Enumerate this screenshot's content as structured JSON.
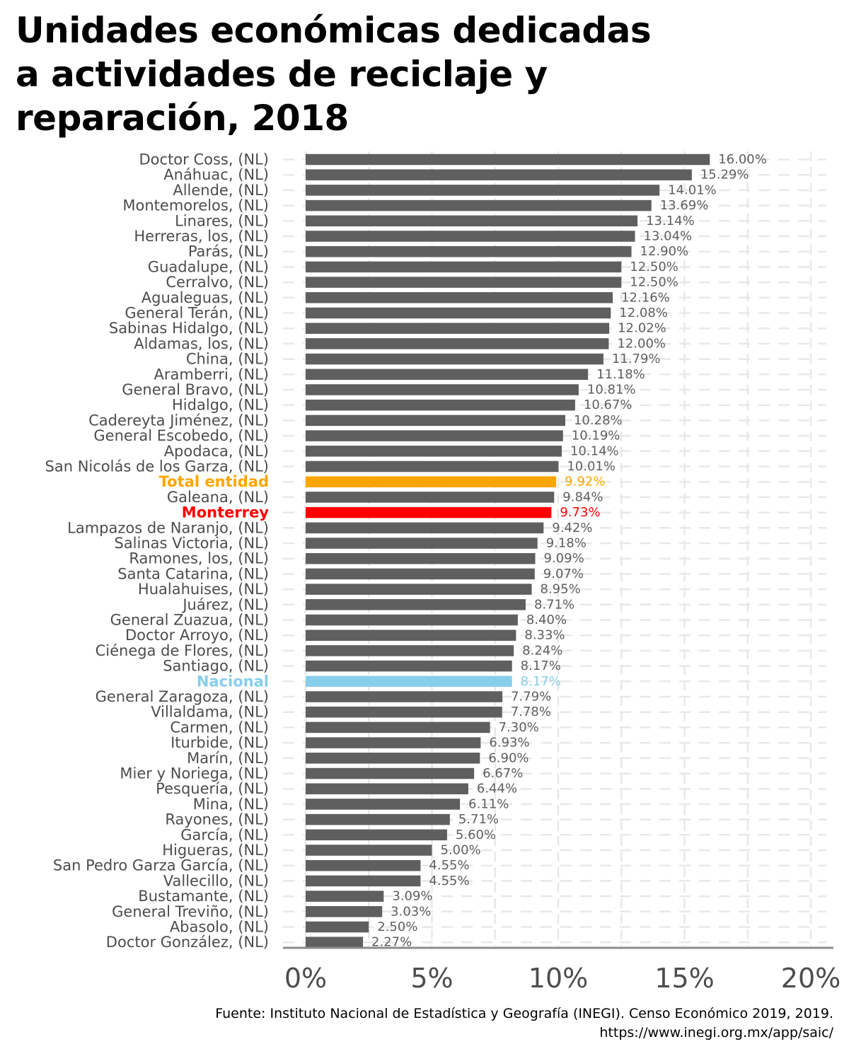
{
  "chart_data": {
    "type": "bar",
    "orientation": "horizontal",
    "title": "Unidades económicas dedicadas a actividades de reciclaje y reparación, 2018",
    "title_lines": [
      "Unidades económicas dedicadas",
      "a actividades de reciclaje y",
      "reparación, 2018"
    ],
    "xlabel": "",
    "ylabel": "",
    "xlim": [
      0,
      20
    ],
    "x_ticks": [
      "0%",
      "5%",
      "10%",
      "15%",
      "20%"
    ],
    "x_tick_values": [
      0,
      5,
      10,
      15,
      20
    ],
    "value_suffix": "%",
    "grid": true,
    "colors": {
      "default": "#5f5f5f",
      "total_entidad": "#FFA500",
      "monterrey": "#FF0000",
      "nacional": "#87CEEB",
      "label_default": "#4d4d4d",
      "value_default": "#5f5f5f",
      "grid": "#e8e8e8",
      "axis": "#8c8c8c",
      "tick_label": "#4d4d4d"
    },
    "categories": [
      "Doctor Coss, (NL)",
      "Anáhuac, (NL)",
      "Allende, (NL)",
      "Montemorelos, (NL)",
      "Linares, (NL)",
      "Herreras, los, (NL)",
      "Parás, (NL)",
      "Guadalupe, (NL)",
      "Cerralvo, (NL)",
      "Agualeguas, (NL)",
      "General Terán, (NL)",
      "Sabinas Hidalgo, (NL)",
      "Aldamas, los, (NL)",
      "China, (NL)",
      "Aramberri, (NL)",
      "General Bravo, (NL)",
      "Hidalgo, (NL)",
      "Cadereyta Jiménez, (NL)",
      "General Escobedo, (NL)",
      "Apodaca, (NL)",
      "San Nicolás de los Garza, (NL)",
      "Total entidad",
      "Galeana, (NL)",
      "Monterrey",
      "Lampazos de Naranjo, (NL)",
      "Salinas Victoria, (NL)",
      "Ramones, los, (NL)",
      "Santa Catarina, (NL)",
      "Hualahuises, (NL)",
      "Juárez, (NL)",
      "General Zuazua, (NL)",
      "Doctor Arroyo, (NL)",
      "Ciénega de Flores, (NL)",
      "Santiago, (NL)",
      "Nacional",
      "General Zaragoza, (NL)",
      "Villaldama, (NL)",
      "Carmen, (NL)",
      "Iturbide, (NL)",
      "Marín, (NL)",
      "Mier y Noriega, (NL)",
      "Pesquería, (NL)",
      "Mina, (NL)",
      "Rayones, (NL)",
      "García, (NL)",
      "Higueras, (NL)",
      "San Pedro Garza García, (NL)",
      "Vallecillo, (NL)",
      "Bustamante, (NL)",
      "General Treviño, (NL)",
      "Abasolo, (NL)",
      "Doctor González, (NL)"
    ],
    "values": [
      16.0,
      15.29,
      14.01,
      13.69,
      13.14,
      13.04,
      12.9,
      12.5,
      12.5,
      12.16,
      12.08,
      12.02,
      12.0,
      11.79,
      11.18,
      10.81,
      10.67,
      10.28,
      10.19,
      10.14,
      10.01,
      9.92,
      9.84,
      9.73,
      9.42,
      9.18,
      9.09,
      9.07,
      8.95,
      8.71,
      8.4,
      8.33,
      8.24,
      8.17,
      8.17,
      7.79,
      7.78,
      7.3,
      6.93,
      6.9,
      6.67,
      6.44,
      6.11,
      5.71,
      5.6,
      5.0,
      4.55,
      4.55,
      3.09,
      3.03,
      2.5,
      2.27
    ],
    "value_labels": [
      "16.00%",
      "15.29%",
      "14.01%",
      "13.69%",
      "13.14%",
      "13.04%",
      "12.90%",
      "12.50%",
      "12.50%",
      "12.16%",
      "12.08%",
      "12.02%",
      "12.00%",
      "11.79%",
      "11.18%",
      "10.81%",
      "10.67%",
      "10.28%",
      "10.19%",
      "10.14%",
      "10.01%",
      "9.92%",
      "9.84%",
      "9.73%",
      "9.42%",
      "9.18%",
      "9.09%",
      "9.07%",
      "8.95%",
      "8.71%",
      "8.40%",
      "8.33%",
      "8.24%",
      "8.17%",
      "8.17%",
      "7.79%",
      "7.78%",
      "7.30%",
      "6.93%",
      "6.90%",
      "6.67%",
      "6.44%",
      "6.11%",
      "5.71%",
      "5.60%",
      "5.00%",
      "4.55%",
      "4.55%",
      "3.09%",
      "3.03%",
      "2.50%",
      "2.27%"
    ],
    "highlights": {
      "Total entidad": "total_entidad",
      "Monterrey": "monterrey",
      "Nacional": "nacional"
    }
  },
  "source": {
    "line1": "Fuente: Instituto Nacional de Estadística y Geografía (INEGI). Censo Económico 2019, 2019.",
    "line2": "https://www.inegi.org.mx/app/saic/"
  }
}
